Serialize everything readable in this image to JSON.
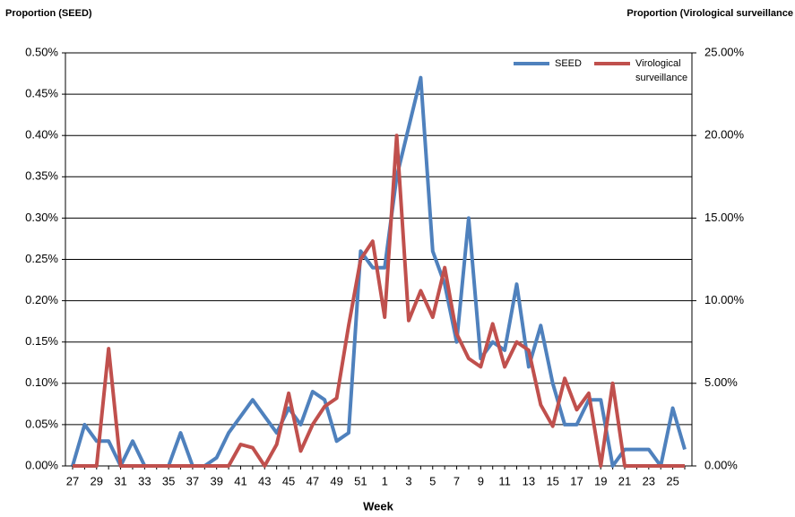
{
  "chart_data": {
    "type": "line",
    "y_label": "Proportion (SEED)",
    "y2_label": "Proportion (Virological surveillance",
    "x_label": "Week",
    "categories": [
      27,
      null,
      29,
      null,
      31,
      null,
      33,
      null,
      35,
      null,
      37,
      null,
      39,
      null,
      41,
      null,
      43,
      null,
      45,
      null,
      47,
      null,
      49,
      null,
      51,
      null,
      1,
      null,
      3,
      null,
      5,
      null,
      7,
      null,
      9,
      null,
      11,
      null,
      13,
      null,
      15,
      null,
      17,
      null,
      19,
      null,
      21,
      null,
      23,
      null,
      25,
      null
    ],
    "series": [
      {
        "name": "SEED",
        "color": "#4f81bd",
        "axis": "y",
        "values": [
          0,
          0.05,
          0.03,
          0.03,
          0,
          0.03,
          0,
          0,
          0,
          0.04,
          0,
          0,
          0.01,
          0.04,
          0.06,
          0.08,
          0.06,
          0.04,
          0.07,
          0.05,
          0.09,
          0.08,
          0.03,
          0.04,
          0.26,
          0.24,
          0.24,
          0.35,
          0.41,
          0.47,
          0.26,
          0.22,
          0.15,
          0.3,
          0.13,
          0.15,
          0.14,
          0.22,
          0.12,
          0.17,
          0.1,
          0.05,
          0.05,
          0.08,
          0.08,
          0,
          0.02,
          0.02,
          0.02,
          0,
          0.07,
          0.02
        ]
      },
      {
        "name": "Virological surveillance",
        "color": "#c0504d",
        "axis": "y2",
        "values": [
          0,
          0,
          0,
          7.1,
          0,
          0,
          0,
          0,
          0,
          0,
          0,
          0,
          0,
          0,
          1.3,
          1.1,
          0,
          1.3,
          4.4,
          0.9,
          2.5,
          3.6,
          4.1,
          8.5,
          12.5,
          13.6,
          9.0,
          20.0,
          8.8,
          10.6,
          9.0,
          12.0,
          8.0,
          6.5,
          6.0,
          8.6,
          6.0,
          7.5,
          7.0,
          3.7,
          2.4,
          5.3,
          3.4,
          4.4,
          0,
          5.0,
          0,
          0,
          0,
          0,
          0,
          0
        ]
      }
    ],
    "ylim": [
      0,
      0.5
    ],
    "yticks": [
      {
        "value": 0,
        "label": "0.00%"
      },
      {
        "value": 0.05,
        "label": "0.05%"
      },
      {
        "value": 0.1,
        "label": "0.10%"
      },
      {
        "value": 0.15,
        "label": "0.15%"
      },
      {
        "value": 0.2,
        "label": "0.20%"
      },
      {
        "value": 0.25,
        "label": "0.25%"
      },
      {
        "value": 0.3,
        "label": "0.30%"
      },
      {
        "value": 0.35,
        "label": "0.35%"
      },
      {
        "value": 0.4,
        "label": "0.40%"
      },
      {
        "value": 0.45,
        "label": "0.45%"
      },
      {
        "value": 0.5,
        "label": "0.50%"
      }
    ],
    "y2lim": [
      0,
      25
    ],
    "y2ticks": [
      {
        "value": 0,
        "label": "0.00%"
      },
      {
        "value": 5,
        "label": "5.00%"
      },
      {
        "value": 10,
        "label": "10.00%"
      },
      {
        "value": 15,
        "label": "15.00%"
      },
      {
        "value": 20,
        "label": "20.00%"
      },
      {
        "value": 25,
        "label": "25.00%"
      }
    ],
    "grid": true,
    "legend": "top-right"
  }
}
